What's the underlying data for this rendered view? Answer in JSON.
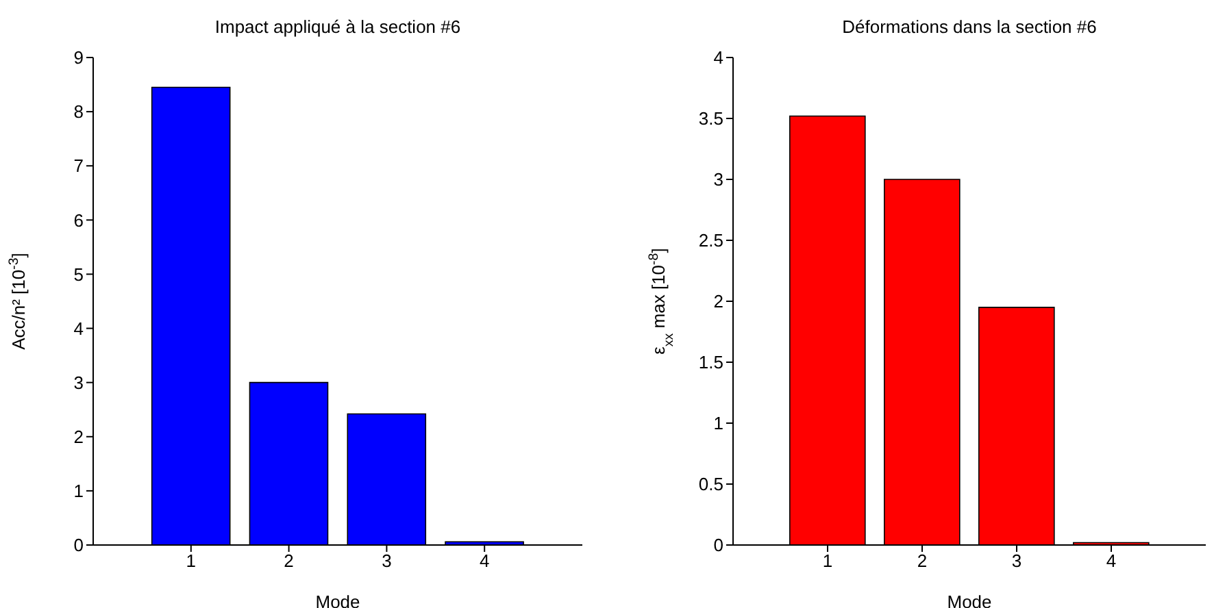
{
  "chart_data": [
    {
      "type": "bar",
      "title": "Impact appliqué à la section #6",
      "xlabel": "Mode",
      "ylabel": "Acc/n² [10$^{-3}$]",
      "categories": [
        "1",
        "2",
        "3",
        "4"
      ],
      "values": [
        8.45,
        3.0,
        2.42,
        0.06
      ],
      "color": "#0000ff",
      "ylim": [
        0,
        9
      ],
      "yticks": [
        0,
        1,
        2,
        3,
        4,
        5,
        6,
        7,
        8,
        9
      ]
    },
    {
      "type": "bar",
      "title": "Déformations dans la section #6",
      "xlabel": "Mode",
      "ylabel": "ε$_{xx}$ max [10$^{-8}$]",
      "categories": [
        "1",
        "2",
        "3",
        "4"
      ],
      "values": [
        3.52,
        3.0,
        1.95,
        0.02
      ],
      "color": "#ff0000",
      "ylim": [
        0,
        4
      ],
      "yticks": [
        0,
        0.5,
        1,
        1.5,
        2,
        2.5,
        3,
        3.5,
        4
      ]
    }
  ]
}
